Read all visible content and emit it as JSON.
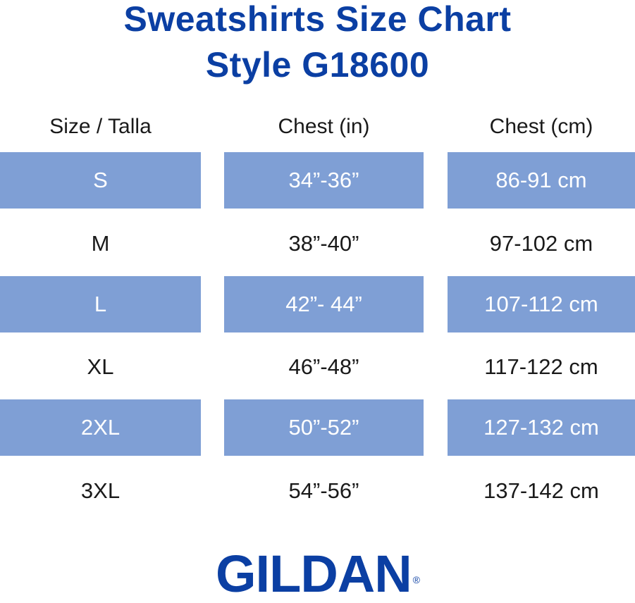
{
  "title_line1": "Sweatshirts Size Chart",
  "title_line2": "Style G18600",
  "columns": [
    "Size / Talla",
    "Chest (in)",
    "Chest (cm)"
  ],
  "rows": [
    {
      "size": "S",
      "chest_in": "34”-36”",
      "chest_cm": "86-91 cm",
      "shaded": true
    },
    {
      "size": "M",
      "chest_in": "38”-40”",
      "chest_cm": "97-102 cm",
      "shaded": false
    },
    {
      "size": "L",
      "chest_in": "42”- 44”",
      "chest_cm": "107-112 cm",
      "shaded": true
    },
    {
      "size": "XL",
      "chest_in": "46”-48”",
      "chest_cm": "117-122 cm",
      "shaded": false
    },
    {
      "size": "2XL",
      "chest_in": "50”-52”",
      "chest_cm": "127-132 cm",
      "shaded": true
    },
    {
      "size": "3XL",
      "chest_in": "54”-56”",
      "chest_cm": "137-142 cm",
      "shaded": false
    }
  ],
  "brand": "GILDAN",
  "brand_mark": "®",
  "colors": {
    "title": "#0b3fa3",
    "row_shade": "#7f9fd5"
  }
}
